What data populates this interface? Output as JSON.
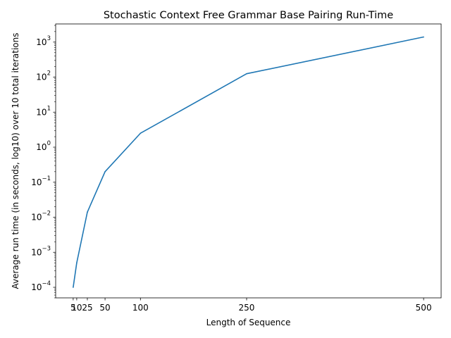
{
  "chart_data": {
    "type": "line",
    "title": "Stochastic Context Free Grammar Base Pairing Run-Time",
    "xlabel": "Length of Sequence",
    "ylabel": "Average run time (in seconds, log10) over 10 total iterations",
    "x": [
      5,
      10,
      25,
      50,
      100,
      250,
      500
    ],
    "series": [
      {
        "values": [
          0.0001,
          0.0005,
          0.014,
          0.2,
          2.5,
          125,
          1400
        ],
        "color": "#1f77b4"
      }
    ],
    "xticks": [
      5,
      10,
      25,
      50,
      100,
      250,
      500
    ],
    "xtick_labels": [
      "5",
      "10",
      "25",
      "50",
      "100",
      "250",
      "500"
    ],
    "yscale": "log",
    "ylim": [
      5e-05,
      3300
    ],
    "xlim": [
      -19.75,
      524.75
    ],
    "yticks": [
      0.0001,
      0.001,
      0.01,
      0.1,
      1,
      10,
      100,
      1000
    ],
    "ytick_labels": [
      {
        "base": "10",
        "exp": "−4"
      },
      {
        "base": "10",
        "exp": "−3"
      },
      {
        "base": "10",
        "exp": "−2"
      },
      {
        "base": "10",
        "exp": "−1"
      },
      {
        "base": "10",
        "exp": "0"
      },
      {
        "base": "10",
        "exp": "1"
      },
      {
        "base": "10",
        "exp": "2"
      },
      {
        "base": "10",
        "exp": "3"
      }
    ],
    "grid": false,
    "legend": "none"
  }
}
